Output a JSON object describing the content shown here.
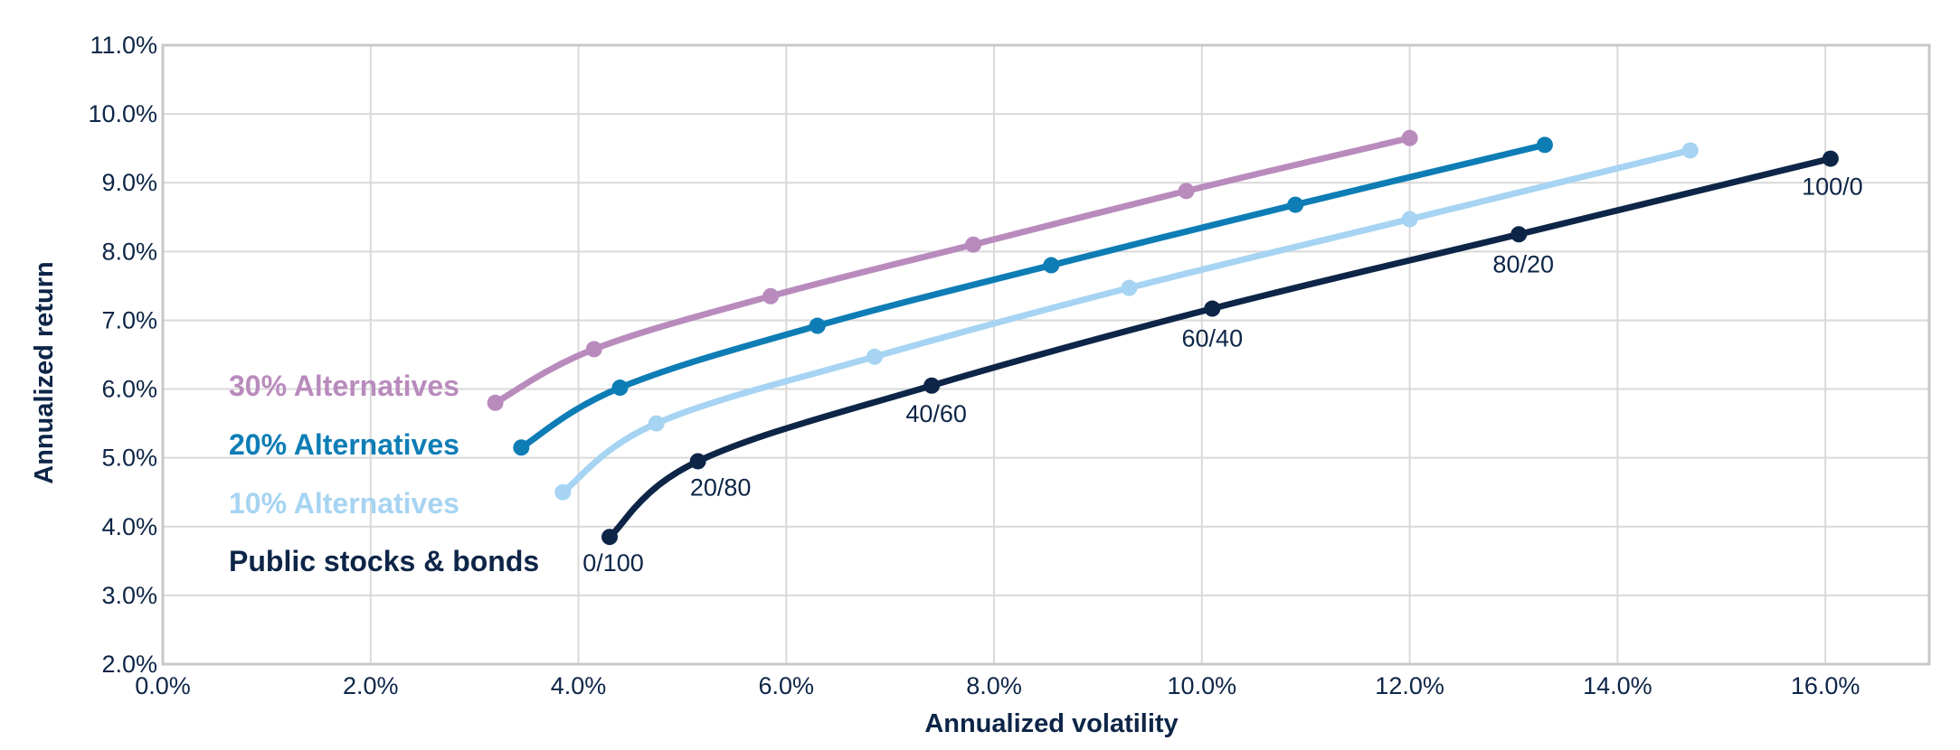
{
  "chart_data": {
    "type": "line",
    "xlabel": "Annualized volatility",
    "ylabel": "Annualized return",
    "xlim": [
      0,
      17
    ],
    "ylim": [
      2,
      11
    ],
    "x_ticks": [
      "0.0%",
      "2.0%",
      "4.0%",
      "6.0%",
      "8.0%",
      "10.0%",
      "12.0%",
      "14.0%",
      "16.0%"
    ],
    "x_tick_values": [
      0,
      2,
      4,
      6,
      8,
      10,
      12,
      14,
      16
    ],
    "y_ticks": [
      "2.0%",
      "3.0%",
      "4.0%",
      "5.0%",
      "6.0%",
      "7.0%",
      "8.0%",
      "9.0%",
      "10.0%",
      "11.0%"
    ],
    "y_tick_values": [
      2,
      3,
      4,
      5,
      6,
      7,
      8,
      9,
      10,
      11
    ],
    "grid": true,
    "legend_placement": "left",
    "series": [
      {
        "name": "30% Alternatives",
        "color": "#b98bbd",
        "x": [
          3.2,
          4.15,
          5.85,
          7.8,
          9.85,
          12.0
        ],
        "y": [
          5.8,
          6.58,
          7.35,
          8.1,
          8.88,
          9.65
        ]
      },
      {
        "name": "20% Alternatives",
        "color": "#0e7db5",
        "x": [
          3.45,
          4.4,
          6.3,
          8.55,
          10.9,
          13.3
        ],
        "y": [
          5.15,
          6.02,
          6.92,
          7.8,
          8.68,
          9.55
        ]
      },
      {
        "name": "10% Alternatives",
        "color": "#a6d4f2",
        "x": [
          3.85,
          4.75,
          6.85,
          9.3,
          12.0,
          14.7
        ],
        "y": [
          4.5,
          5.5,
          6.47,
          7.47,
          8.47,
          9.47
        ]
      },
      {
        "name": "Public stocks & bonds",
        "color": "#0d2547",
        "x": [
          4.3,
          5.15,
          7.4,
          10.1,
          13.05,
          16.05
        ],
        "y": [
          3.85,
          4.95,
          6.05,
          7.17,
          8.25,
          9.35
        ],
        "point_labels": [
          "0/100",
          "20/80",
          "40/60",
          "60/40",
          "80/20",
          "100/0"
        ]
      }
    ]
  }
}
